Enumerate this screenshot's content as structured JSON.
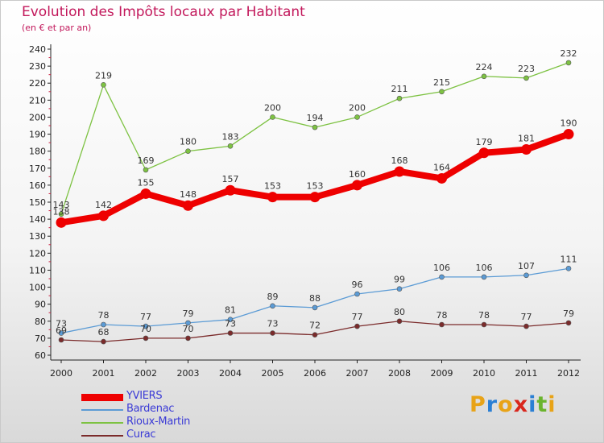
{
  "header": {
    "title": "Evolution des Impôts locaux par Habitant",
    "subtitle": "(en € et par an)"
  },
  "logo": {
    "text": "Proxiti",
    "colors": [
      "#e8a317",
      "#2a7fd4",
      "#e8a317",
      "#d9261c",
      "#2a7fd4",
      "#6ab42d",
      "#e8a317"
    ]
  },
  "chart_data": {
    "type": "line",
    "title": "Evolution des Impôts locaux par Habitant",
    "subtitle": "(en € et par an)",
    "categories": [
      "2000",
      "2001",
      "2002",
      "2003",
      "2004",
      "2005",
      "2006",
      "2007",
      "2008",
      "2009",
      "2010",
      "2011",
      "2012"
    ],
    "ylim": [
      60,
      240
    ],
    "yticks": [
      60,
      70,
      80,
      90,
      100,
      110,
      120,
      130,
      140,
      150,
      160,
      170,
      180,
      190,
      200,
      210,
      220,
      230,
      240
    ],
    "grid": false,
    "legend_position": "bottom-left",
    "series": [
      {
        "name": "YVIERS",
        "color": "#ee0000",
        "values": [
          138,
          142,
          155,
          148,
          157,
          153,
          153,
          160,
          168,
          164,
          179,
          181,
          190
        ]
      },
      {
        "name": "Bardenac",
        "color": "#5b9bd5",
        "values": [
          73,
          78,
          77,
          79,
          81,
          89,
          88,
          96,
          99,
          106,
          106,
          107,
          111
        ]
      },
      {
        "name": "Rioux-Martin",
        "color": "#7dc242",
        "values": [
          143,
          219,
          169,
          180,
          183,
          200,
          194,
          200,
          211,
          215,
          224,
          223,
          232
        ]
      },
      {
        "name": "Curac",
        "color": "#7b2b2b",
        "values": [
          69,
          68,
          70,
          70,
          73,
          73,
          72,
          77,
          80,
          78,
          78,
          77,
          79
        ]
      }
    ]
  }
}
